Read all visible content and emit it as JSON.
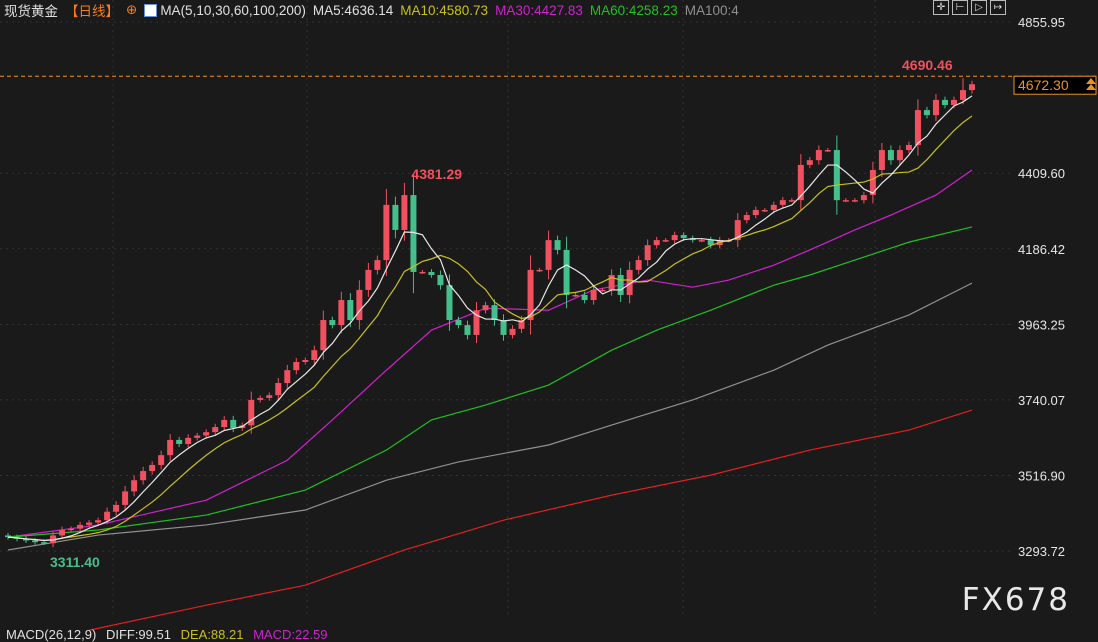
{
  "header": {
    "title": "现货黄金",
    "period": "【日线】",
    "period_icon": "crosshair-circle-icon",
    "ma_icon": "ma-chart-icon",
    "ma_params": "MA(5,10,30,60,100,200)",
    "ma5": "MA5:4636.14",
    "ma10": "MA10:4580.73",
    "ma30": "MA30:4427.83",
    "ma60": "MA60:4258.23",
    "ma100": "MA100:4"
  },
  "toolbar": [
    {
      "icon": "crosshair-icon",
      "glyph": "✛"
    },
    {
      "icon": "zoom-range-icon",
      "glyph": "⊢"
    },
    {
      "icon": "play-forward-icon",
      "glyph": "▷"
    },
    {
      "icon": "jump-end-icon",
      "glyph": "↦"
    }
  ],
  "macd": {
    "params": "MACD(26,12,9)",
    "diff": "DIFF:99.51",
    "dea": "DEA:88.21",
    "macd": "MACD:22.59"
  },
  "watermark": "FX678",
  "colors": {
    "background": "#1a1a1a",
    "up": "#f0505f",
    "down": "#45c08c",
    "ma5": "#e8e8e8",
    "ma10": "#c8c020",
    "ma30": "#d020d0",
    "ma60": "#20c020",
    "ma100": "#909090",
    "ma200": "#e02020",
    "last_price": "#f09020"
  },
  "chart_data": {
    "type": "candlestick",
    "ylim": [
      3105,
      4921
    ],
    "y_ticks": [
      "4855.95",
      "4409.60",
      "4186.42",
      "3963.25",
      "3740.07",
      "3516.90",
      "3293.72"
    ],
    "grid": true,
    "annotations": {
      "high_label": "4381.29",
      "low_label": "3311.40",
      "latest_high_label": "4690.46",
      "last_price": "4672.30"
    },
    "close": [
      3335,
      3330,
      3325,
      3320,
      3317,
      3340,
      3356,
      3360,
      3371,
      3378,
      3385,
      3410,
      3430,
      3470,
      3503,
      3530,
      3548,
      3577,
      3622,
      3610,
      3628,
      3635,
      3645,
      3660,
      3681,
      3657,
      3665,
      3740,
      3746,
      3754,
      3790,
      3828,
      3852,
      3858,
      3887,
      3976,
      3961,
      4035,
      3976,
      4065,
      4124,
      4153,
      4316,
      4242,
      4345,
      4118,
      4118,
      4109,
      4079,
      3976,
      3961,
      3932,
      4005,
      4020,
      3976,
      3932,
      3950,
      3976,
      4124,
      4124,
      4212,
      4183,
      4050,
      4050,
      4035,
      4065,
      4065,
      4109,
      4050,
      4124,
      4153,
      4197,
      4212,
      4212,
      4227,
      4218,
      4212,
      4212,
      4197,
      4212,
      4212,
      4271,
      4286,
      4301,
      4301,
      4316,
      4330,
      4330,
      4434,
      4448,
      4478,
      4478,
      4330,
      4330,
      4330,
      4345,
      4419,
      4478,
      4448,
      4478,
      4493,
      4596,
      4581,
      4626,
      4611,
      4626,
      4655,
      4672.3
    ],
    "extremes": [
      {
        "bar": 44,
        "high": 4381.29
      },
      {
        "bar": 4,
        "low": 3311.4
      },
      {
        "bar": 106,
        "high": 4690.46
      }
    ],
    "moving_averages": [
      {
        "name": "MA30",
        "points": [
          [
            0,
            3335
          ],
          [
            10,
            3371
          ],
          [
            22,
            3444
          ],
          [
            31,
            3562
          ],
          [
            36,
            3681
          ],
          [
            42,
            3828
          ],
          [
            47,
            3946
          ],
          [
            53,
            4011
          ],
          [
            60,
            4005
          ],
          [
            65,
            4065
          ],
          [
            71,
            4094
          ],
          [
            76,
            4073
          ],
          [
            80,
            4094
          ],
          [
            85,
            4138
          ],
          [
            89,
            4183
          ],
          [
            94,
            4242
          ],
          [
            98,
            4286
          ],
          [
            103,
            4345
          ],
          [
            107,
            4419
          ]
        ]
      },
      {
        "name": "MA60",
        "points": [
          [
            0,
            3335
          ],
          [
            10,
            3356
          ],
          [
            22,
            3400
          ],
          [
            33,
            3474
          ],
          [
            42,
            3592
          ],
          [
            47,
            3681
          ],
          [
            53,
            3725
          ],
          [
            60,
            3784
          ],
          [
            67,
            3887
          ],
          [
            72,
            3946
          ],
          [
            78,
            4005
          ],
          [
            85,
            4079
          ],
          [
            89,
            4109
          ],
          [
            94,
            4153
          ],
          [
            100,
            4206
          ],
          [
            107,
            4251
          ]
        ]
      },
      {
        "name": "MA100",
        "points": [
          [
            0,
            3297
          ],
          [
            10,
            3341
          ],
          [
            22,
            3371
          ],
          [
            33,
            3415
          ],
          [
            42,
            3503
          ],
          [
            50,
            3557
          ],
          [
            60,
            3607
          ],
          [
            67,
            3666
          ],
          [
            76,
            3740
          ],
          [
            85,
            3828
          ],
          [
            91,
            3902
          ],
          [
            100,
            3991
          ],
          [
            107,
            4085
          ]
        ]
      },
      {
        "name": "MA200",
        "points": [
          [
            9,
            3060
          ],
          [
            22,
            3134
          ],
          [
            33,
            3193
          ],
          [
            44,
            3297
          ],
          [
            55,
            3385
          ],
          [
            67,
            3459
          ],
          [
            78,
            3518
          ],
          [
            89,
            3592
          ],
          [
            100,
            3651
          ],
          [
            107,
            3710
          ]
        ]
      }
    ]
  }
}
